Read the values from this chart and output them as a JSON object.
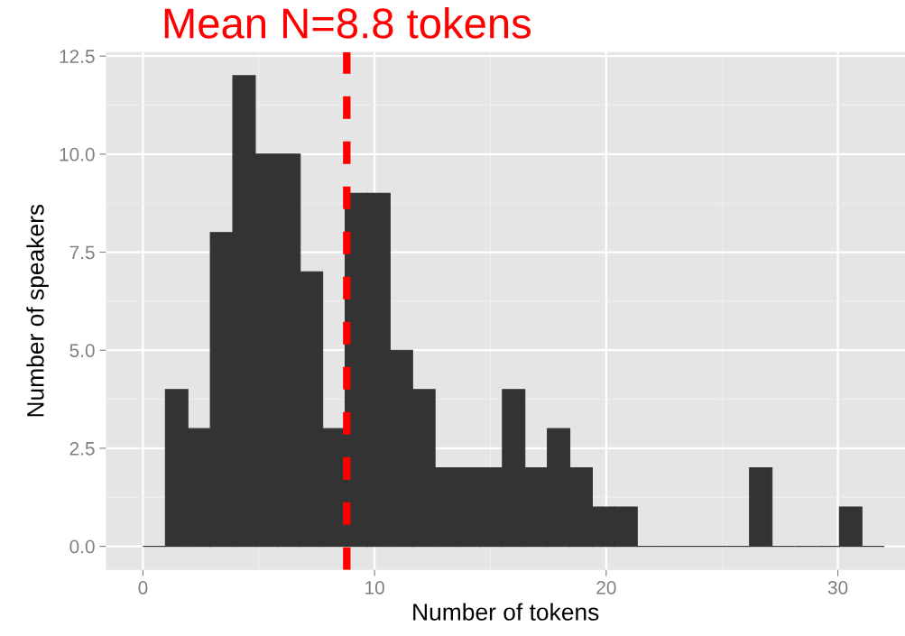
{
  "chart_data": {
    "type": "histogram",
    "xlabel": "Number of tokens",
    "ylabel": "Number of speakers",
    "bins": [
      0,
      0.97,
      1.94,
      2.91,
      3.88,
      4.85,
      5.82,
      6.79,
      7.76,
      8.73,
      9.7,
      10.67,
      11.64,
      12.61,
      13.58,
      14.55,
      15.52,
      16.49,
      17.46,
      18.43,
      19.4,
      20.37,
      21.34,
      22.31,
      23.28,
      24.25,
      25.22,
      26.19,
      27.16,
      28.13,
      29.1,
      30.07,
      31.04,
      32.01
    ],
    "values": [
      0,
      4,
      3,
      8,
      12,
      10,
      10,
      7,
      3,
      9,
      9,
      5,
      4,
      2,
      2,
      2,
      4,
      2,
      3,
      2,
      1,
      1,
      0,
      0,
      0,
      0,
      0,
      2,
      0,
      0,
      0,
      1,
      0
    ],
    "color": "#333333",
    "xlim": [
      -1.6,
      32.9
    ],
    "ylim": [
      -0.6,
      12.6
    ],
    "xticks": [
      0,
      10,
      20,
      30
    ],
    "yticks": [
      {
        "value": 0,
        "label": "0.0"
      },
      {
        "value": 2.5,
        "label": "2.5"
      },
      {
        "value": 5,
        "label": "5.0"
      },
      {
        "value": 7.5,
        "label": "7.5"
      },
      {
        "value": 10,
        "label": "10.0"
      },
      {
        "value": 12.5,
        "label": "12.5"
      }
    ],
    "grid": true,
    "ref_lines": [
      {
        "axis": "x",
        "value": 8.8,
        "label": "Mean N=8.8 tokens",
        "color": "#ff0000",
        "line_style": "dashed"
      }
    ]
  }
}
